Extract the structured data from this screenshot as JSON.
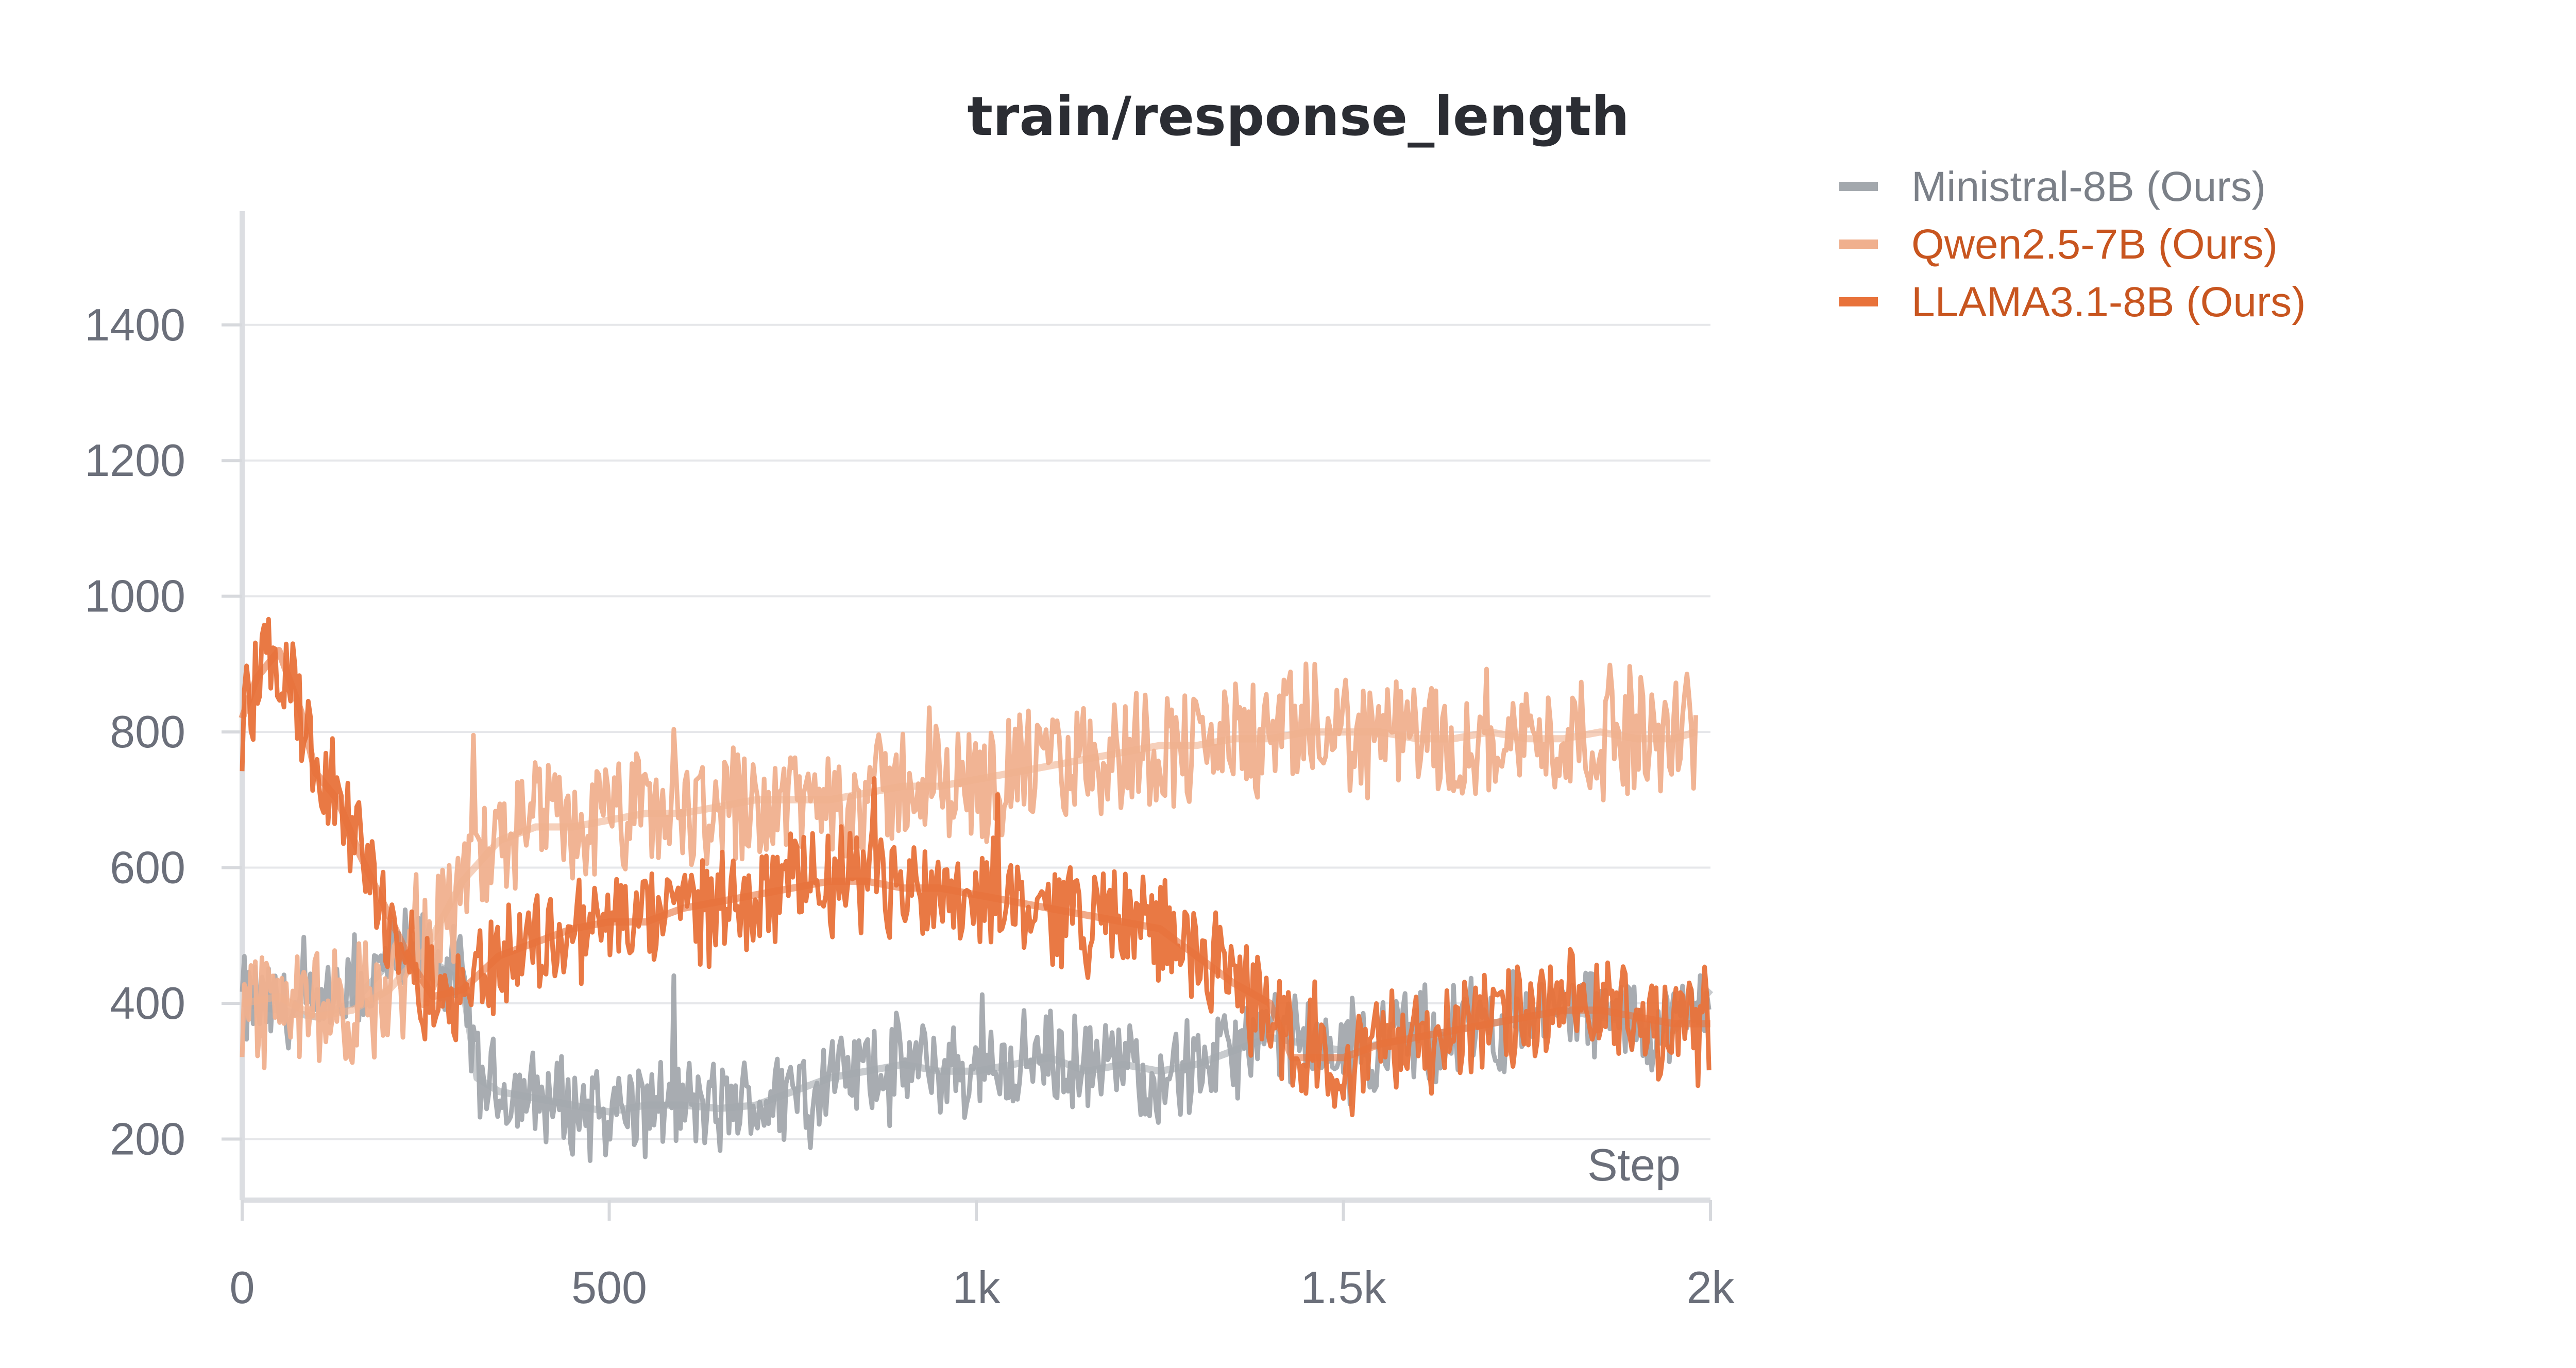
{
  "chart_data": {
    "type": "line",
    "title": "train/response_length",
    "xlabel": "Step",
    "ylabel": "",
    "xlim": [
      0,
      2000
    ],
    "ylim": [
      110,
      1560
    ],
    "x_ticks": [
      {
        "value": 0,
        "label": "0"
      },
      {
        "value": 500,
        "label": "500"
      },
      {
        "value": 1000,
        "label": "1k"
      },
      {
        "value": 1500,
        "label": "1.5k"
      },
      {
        "value": 2000,
        "label": "2k"
      }
    ],
    "y_ticks": [
      {
        "value": 200,
        "label": "200"
      },
      {
        "value": 400,
        "label": "400"
      },
      {
        "value": 600,
        "label": "600"
      },
      {
        "value": 800,
        "label": "800"
      },
      {
        "value": 1000,
        "label": "1000"
      },
      {
        "value": 1200,
        "label": "1200"
      },
      {
        "value": 1400,
        "label": "1400"
      }
    ],
    "grid": true,
    "legend_position": "top-right",
    "series": [
      {
        "name": "Ministral-8B (Ours)",
        "color": "#a3a8ad",
        "label_color": "#7b8088",
        "x": [
          0,
          50,
          100,
          150,
          200,
          250,
          300,
          320,
          350,
          400,
          450,
          500,
          550,
          600,
          650,
          700,
          750,
          800,
          850,
          900,
          950,
          1000,
          1050,
          1100,
          1150,
          1200,
          1250,
          1300,
          1350,
          1400,
          1450,
          1500,
          1550,
          1600,
          1650,
          1700,
          1750,
          1800,
          1850,
          1900,
          1950,
          2000
        ],
        "values": [
          400,
          390,
          380,
          400,
          460,
          470,
          430,
          290,
          270,
          260,
          250,
          240,
          250,
          250,
          245,
          250,
          270,
          290,
          300,
          310,
          300,
          300,
          310,
          320,
          300,
          310,
          300,
          310,
          330,
          350,
          340,
          330,
          340,
          350,
          360,
          370,
          380,
          390,
          380,
          370,
          360,
          420
        ]
      },
      {
        "name": "Qwen2.5-7B (Ours)",
        "color": "#f0b08e",
        "label_color": "#c8551f",
        "x": [
          0,
          50,
          100,
          150,
          200,
          250,
          300,
          350,
          400,
          450,
          500,
          550,
          600,
          650,
          700,
          750,
          800,
          850,
          900,
          950,
          1000,
          1050,
          1100,
          1150,
          1200,
          1250,
          1300,
          1350,
          1400,
          1450,
          1500,
          1550,
          1600,
          1650,
          1700,
          1750,
          1800,
          1850,
          1900,
          1950,
          1980
        ],
        "values": [
          400,
          410,
          380,
          390,
          420,
          480,
          580,
          640,
          660,
          660,
          670,
          680,
          680,
          690,
          700,
          700,
          700,
          710,
          720,
          720,
          730,
          740,
          750,
          760,
          770,
          780,
          780,
          790,
          790,
          800,
          800,
          800,
          790,
          790,
          800,
          790,
          790,
          800,
          790,
          790,
          800
        ]
      },
      {
        "name": "LLAMA3.1-8B (Ours)",
        "color": "#e8723a",
        "label_color": "#c8551f",
        "x": [
          0,
          20,
          50,
          80,
          100,
          130,
          160,
          200,
          230,
          260,
          300,
          350,
          400,
          450,
          500,
          550,
          600,
          650,
          700,
          750,
          800,
          850,
          900,
          950,
          1000,
          1050,
          1100,
          1150,
          1200,
          1250,
          1300,
          1350,
          1400,
          1430,
          1450,
          1500,
          1550,
          1600,
          1650,
          1700,
          1750,
          1800,
          1850,
          1900,
          1950,
          2000
        ],
        "values": [
          820,
          880,
          920,
          830,
          740,
          700,
          620,
          530,
          460,
          410,
          420,
          470,
          490,
          510,
          520,
          520,
          540,
          550,
          560,
          570,
          580,
          580,
          570,
          570,
          560,
          550,
          540,
          530,
          520,
          510,
          470,
          430,
          400,
          320,
          320,
          320,
          340,
          350,
          360,
          370,
          380,
          390,
          390,
          380,
          370,
          370
        ]
      }
    ]
  }
}
